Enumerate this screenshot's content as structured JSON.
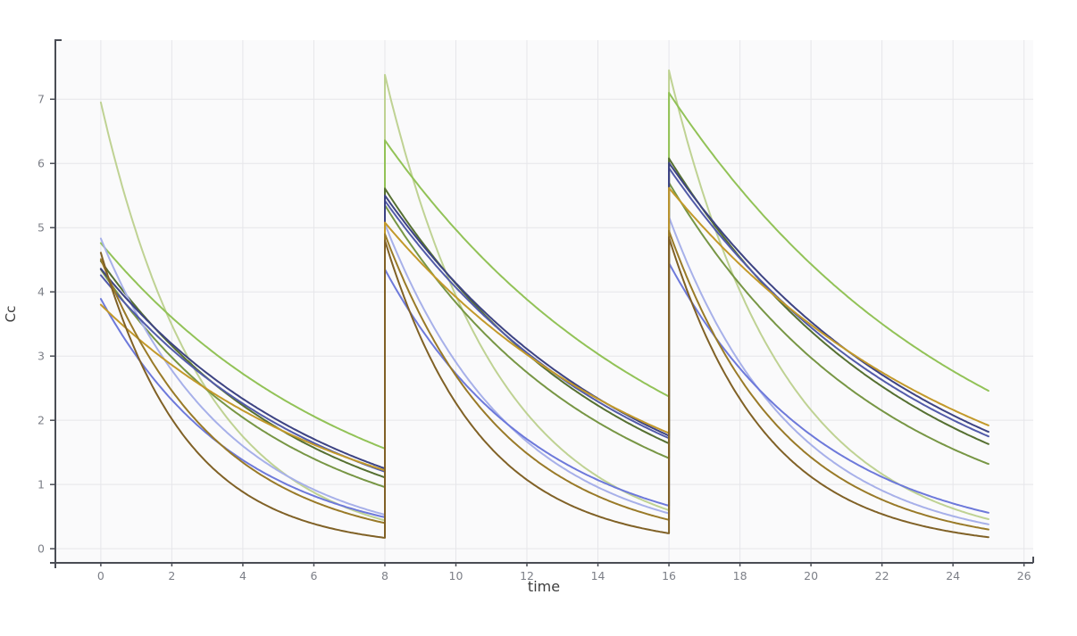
{
  "chart_data": {
    "type": "line",
    "title": "",
    "xlabel": "time",
    "ylabel": "Cc",
    "grid": true,
    "legend": "none",
    "x_ticks": [
      0,
      2,
      4,
      6,
      8,
      10,
      12,
      14,
      16,
      18,
      20,
      22,
      24,
      26
    ],
    "y_ticks": [
      0,
      1,
      2,
      3,
      4,
      5,
      6,
      7
    ],
    "xlim": [
      -1.28,
      26.26
    ],
    "ylim": [
      -0.22,
      7.92
    ],
    "dose_times": [
      0,
      8,
      16
    ],
    "t_end": 25,
    "description": "Repeated-dose concentration-time curves (Cc vs time); doses at t=0, 8, 16 with exponential decay between doses",
    "series": [
      {
        "name": "pale-green-fast",
        "color": "#bcd08e",
        "segments": [
          [
            0,
            6.95,
            8,
            0.44
          ],
          [
            8,
            7.38,
            16,
            0.6
          ],
          [
            16,
            7.45,
            25,
            0.46
          ]
        ]
      },
      {
        "name": "bright-green",
        "color": "#8dc04f",
        "segments": [
          [
            0,
            4.76,
            8,
            1.56
          ],
          [
            8,
            6.36,
            16,
            2.37
          ],
          [
            16,
            7.1,
            25,
            2.46
          ]
        ]
      },
      {
        "name": "medium-olive",
        "color": "#71913b",
        "segments": [
          [
            0,
            4.35,
            8,
            0.96
          ],
          [
            8,
            5.35,
            16,
            1.41
          ],
          [
            16,
            5.7,
            25,
            1.32
          ]
        ]
      },
      {
        "name": "dark-olive",
        "color": "#4d6827",
        "segments": [
          [
            0,
            4.48,
            8,
            1.11
          ],
          [
            8,
            5.61,
            16,
            1.64
          ],
          [
            16,
            6.08,
            25,
            1.63
          ]
        ]
      },
      {
        "name": "light-periwinkle",
        "color": "#a3ade9",
        "segments": [
          [
            0,
            4.83,
            8,
            0.53
          ],
          [
            8,
            5.06,
            16,
            0.55
          ],
          [
            16,
            5.17,
            25,
            0.38
          ]
        ]
      },
      {
        "name": "medium-blue",
        "color": "#6673d9",
        "segments": [
          [
            0,
            3.89,
            8,
            0.49
          ],
          [
            8,
            4.35,
            16,
            0.67
          ],
          [
            16,
            4.45,
            25,
            0.56
          ]
        ]
      },
      {
        "name": "navy-light",
        "color": "#4a53a5",
        "segments": [
          [
            0,
            4.26,
            8,
            1.2
          ],
          [
            8,
            5.42,
            16,
            1.72
          ],
          [
            16,
            5.93,
            25,
            1.75
          ]
        ]
      },
      {
        "name": "navy-dark",
        "color": "#333a7d",
        "segments": [
          [
            0,
            4.36,
            8,
            1.25
          ],
          [
            8,
            5.5,
            16,
            1.76
          ],
          [
            16,
            6.01,
            25,
            1.82
          ]
        ]
      },
      {
        "name": "gold",
        "color": "#c0941f",
        "segments": [
          [
            0,
            3.8,
            8,
            1.22
          ],
          [
            8,
            5.08,
            16,
            1.8
          ],
          [
            16,
            5.62,
            25,
            1.92
          ]
        ]
      },
      {
        "name": "olive-brown",
        "color": "#94741d",
        "segments": [
          [
            0,
            4.51,
            8,
            0.4
          ],
          [
            8,
            4.9,
            16,
            0.45
          ],
          [
            16,
            4.95,
            25,
            0.3
          ]
        ]
      },
      {
        "name": "dark-brown",
        "color": "#7a591b",
        "segments": [
          [
            0,
            4.61,
            8,
            0.17
          ],
          [
            8,
            4.8,
            16,
            0.24
          ],
          [
            16,
            4.85,
            25,
            0.18
          ]
        ]
      }
    ]
  },
  "colors": {
    "background": "#ffffff",
    "plot_background": "#fafafb",
    "gridline": "#e6e6ea",
    "axis_line": "#4a4d55",
    "tick_label": "#7c7f87",
    "axis_title": "#3d3d3d"
  }
}
